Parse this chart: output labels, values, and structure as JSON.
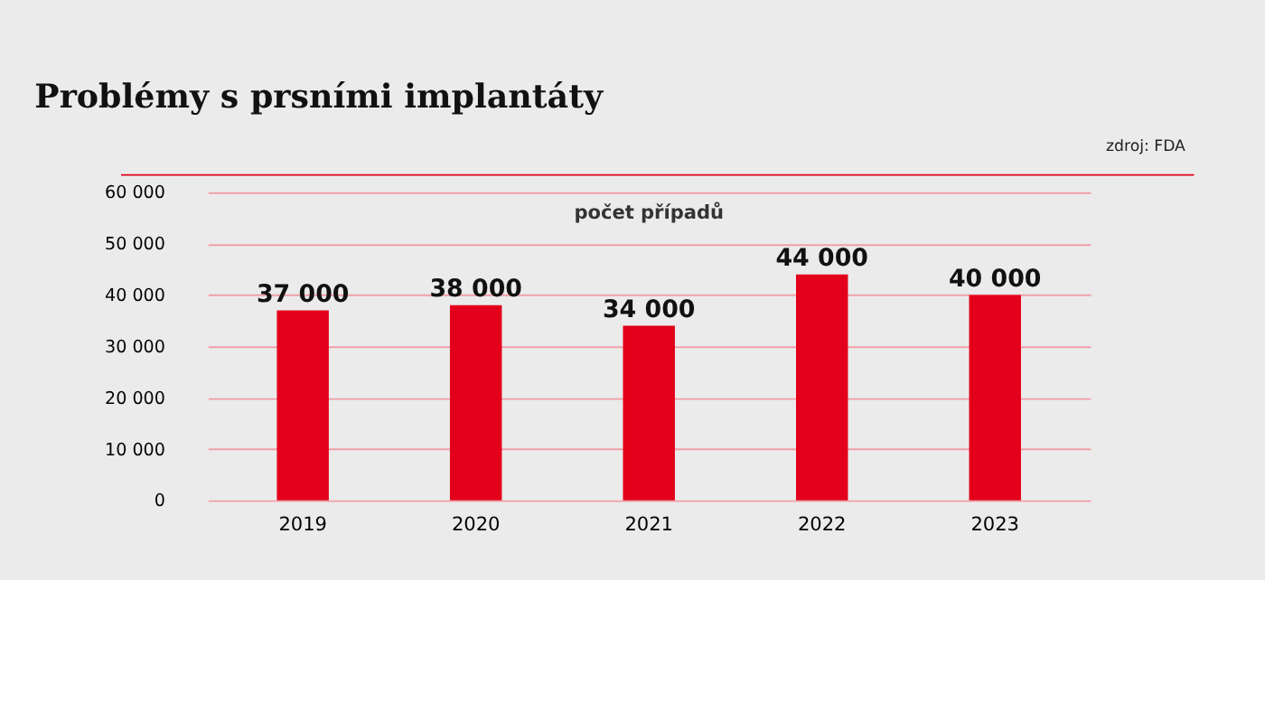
{
  "chart_data": {
    "type": "bar",
    "title": "Problémy s prsními implantáty",
    "annotations": [
      "zdroj: FDA",
      "počet případů"
    ],
    "categories": [
      "2019",
      "2020",
      "2021",
      "2022",
      "2023"
    ],
    "values": [
      37000,
      38000,
      34000,
      44000,
      40000
    ],
    "value_labels": [
      "37 000",
      "38 000",
      "34 000",
      "44 000",
      "40 000"
    ],
    "color": "#e2001a",
    "ylim": [
      0,
      60000
    ],
    "yticks": [
      0,
      {
        "value": 10000,
        "label": "10 000"
      },
      {
        "value": 20000,
        "label": "20 000"
      },
      {
        "value": 30000,
        "label": "30 000"
      },
      {
        "value": 40000,
        "label": "40 000"
      },
      {
        "value": 50000,
        "label": "50 000"
      },
      {
        "value": 60000,
        "label": "60 000"
      }
    ],
    "grid": "y"
  }
}
